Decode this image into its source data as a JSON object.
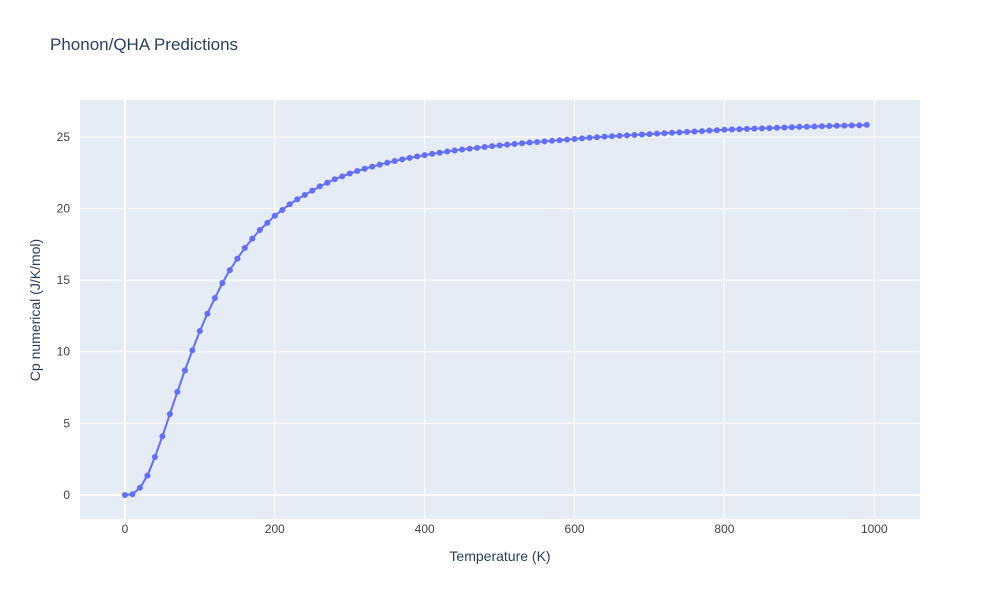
{
  "chart_data": {
    "type": "line",
    "title": "Phonon/QHA Predictions",
    "x_label": "Temperature (K)",
    "y_label": "Cp numerical (J/K/mol)",
    "x": [
      0,
      10,
      20,
      30,
      40,
      50,
      60,
      70,
      80,
      90,
      100,
      110,
      120,
      130,
      140,
      150,
      160,
      170,
      180,
      190,
      200,
      210,
      220,
      230,
      240,
      250,
      260,
      270,
      280,
      290,
      300,
      310,
      320,
      330,
      340,
      350,
      360,
      370,
      380,
      390,
      400,
      410,
      420,
      430,
      440,
      450,
      460,
      470,
      480,
      490,
      500,
      510,
      520,
      530,
      540,
      550,
      560,
      570,
      580,
      590,
      600,
      610,
      620,
      630,
      640,
      650,
      660,
      670,
      680,
      690,
      700,
      710,
      720,
      730,
      740,
      750,
      760,
      770,
      780,
      790,
      800,
      810,
      820,
      830,
      840,
      850,
      860,
      870,
      880,
      890,
      900,
      910,
      920,
      930,
      940,
      950,
      960,
      970,
      980,
      990
    ],
    "values": [
      0,
      0.05,
      0.5,
      1.35,
      2.65,
      4.1,
      5.65,
      7.2,
      8.7,
      10.1,
      11.45,
      12.65,
      13.75,
      14.8,
      15.7,
      16.5,
      17.25,
      17.9,
      18.5,
      19.0,
      19.5,
      19.9,
      20.3,
      20.65,
      20.95,
      21.25,
      21.55,
      21.8,
      22.05,
      22.25,
      22.45,
      22.62,
      22.78,
      22.93,
      23.07,
      23.2,
      23.32,
      23.43,
      23.54,
      23.64,
      23.73,
      23.82,
      23.9,
      23.98,
      24.05,
      24.12,
      24.18,
      24.24,
      24.3,
      24.36,
      24.41,
      24.46,
      24.51,
      24.56,
      24.61,
      24.65,
      24.69,
      24.73,
      24.77,
      24.81,
      24.86,
      24.9,
      24.94,
      24.98,
      25.02,
      25.05,
      25.08,
      25.11,
      25.14,
      25.17,
      25.2,
      25.23,
      25.26,
      25.29,
      25.32,
      25.35,
      25.38,
      25.41,
      25.44,
      25.47,
      25.5,
      25.52,
      25.54,
      25.56,
      25.58,
      25.6,
      25.62,
      25.64,
      25.66,
      25.68,
      25.7,
      25.71,
      25.73,
      25.75,
      25.76,
      25.78,
      25.79,
      25.81,
      25.82,
      25.84
    ],
    "color": "#636efa",
    "markers": true,
    "xlim": [
      -60,
      1061
    ],
    "ylim": [
      -1.68,
      27.58
    ],
    "xticks": [
      0,
      200,
      400,
      600,
      800,
      1000
    ],
    "yticks": [
      0,
      5,
      10,
      15,
      20,
      25
    ],
    "grid": true
  }
}
